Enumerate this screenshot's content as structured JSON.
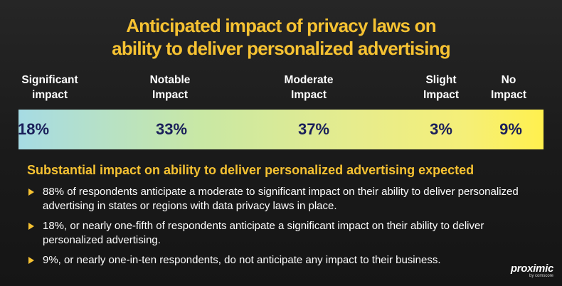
{
  "title": {
    "line1": "Anticipated impact of privacy laws on",
    "line2": "ability to deliver personalized advertising"
  },
  "chart_data": {
    "type": "bar",
    "title": "Anticipated impact of privacy laws on ability to deliver personalized advertising",
    "categories": [
      [
        "Significant",
        "impact"
      ],
      [
        "Notable",
        "Impact"
      ],
      [
        "Moderate",
        "Impact"
      ],
      [
        "Slight",
        "Impact"
      ],
      [
        "No",
        "Impact"
      ]
    ],
    "values": [
      18,
      33,
      37,
      3,
      9
    ],
    "value_labels": [
      "18%",
      "33%",
      "37%",
      "3%",
      "9%"
    ]
  },
  "subtitle": "Substantial impact on ability to deliver personalized advertising expected",
  "bullets": [
    "88% of respondents anticipate a moderate to significant impact on their ability to deliver personalized advertising in states or regions with data privacy laws in place.",
    "18%, or nearly one-fifth of respondents anticipate a significant impact on their ability to deliver personalized advertising.",
    "9%, or nearly one-in-ten respondents, do not anticipate any impact to their business."
  ],
  "logo": {
    "name": "proximic",
    "sub": "by comscore"
  },
  "colors": {
    "accent": "#f6c232",
    "value_text": "#1a1f5a",
    "bar_start": "#a6dbe4",
    "bar_end": "#fff04e"
  }
}
